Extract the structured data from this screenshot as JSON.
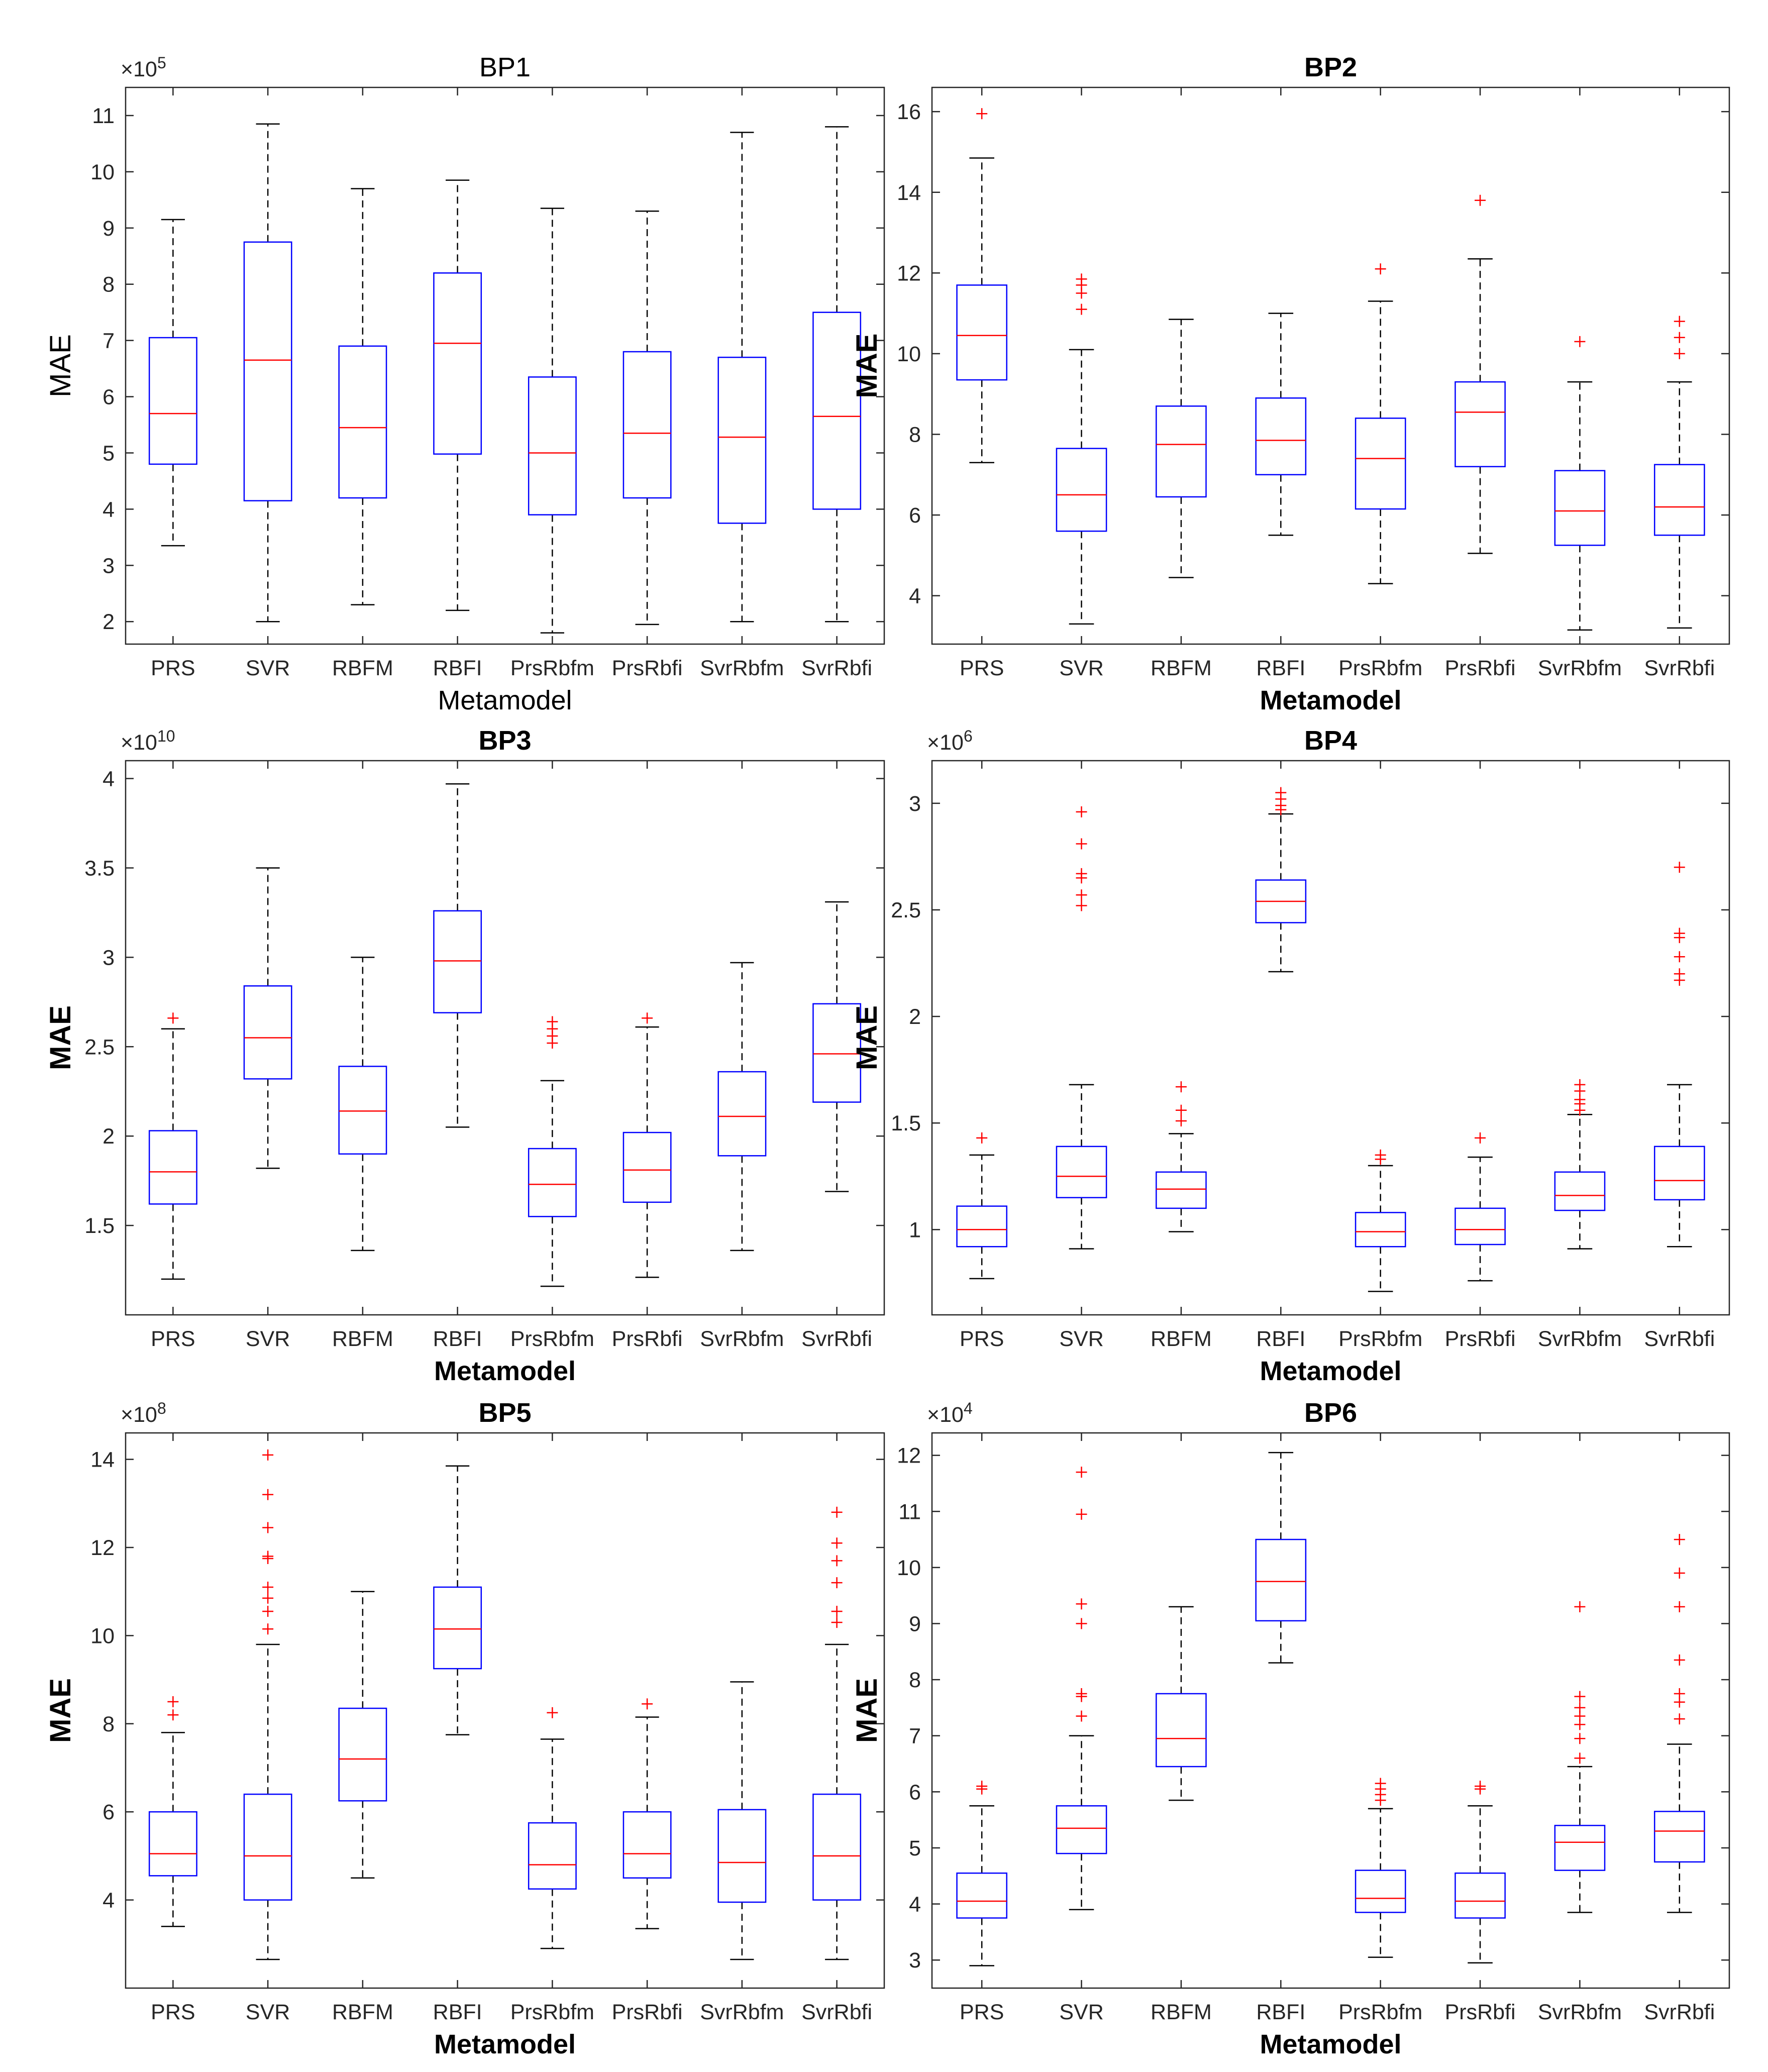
{
  "colors": {
    "box": "#0000ff",
    "median": "#ff0000",
    "outlier": "#ff0000",
    "whisker": "#000000",
    "axis": "#262626"
  },
  "chart_data": [
    {
      "type": "boxplot",
      "title": "BP1",
      "title_bold": false,
      "label_bold": false,
      "xlabel": "Metamodel",
      "ylabel": "MAE",
      "exponent": "5",
      "ylim": [
        1.6,
        11.5
      ],
      "yticks": [
        2,
        3,
        4,
        5,
        6,
        7,
        8,
        9,
        10,
        11
      ],
      "categories": [
        "PRS",
        "SVR",
        "RBFM",
        "RBFI",
        "PrsRbfm",
        "PrsRbfi",
        "SvrRbfm",
        "SvrRbfi"
      ],
      "boxes": [
        {
          "lw": 3.35,
          "q1": 4.8,
          "med": 5.7,
          "q3": 7.05,
          "uw": 9.15,
          "outliers": []
        },
        {
          "lw": 2.0,
          "q1": 4.15,
          "med": 6.65,
          "q3": 8.75,
          "uw": 10.85,
          "outliers": []
        },
        {
          "lw": 2.3,
          "q1": 4.2,
          "med": 5.45,
          "q3": 6.9,
          "uw": 9.7,
          "outliers": []
        },
        {
          "lw": 2.2,
          "q1": 4.98,
          "med": 6.95,
          "q3": 8.2,
          "uw": 9.85,
          "outliers": []
        },
        {
          "lw": 1.8,
          "q1": 3.9,
          "med": 5.0,
          "q3": 6.35,
          "uw": 9.35,
          "outliers": []
        },
        {
          "lw": 1.95,
          "q1": 4.2,
          "med": 5.35,
          "q3": 6.8,
          "uw": 9.3,
          "outliers": []
        },
        {
          "lw": 2.0,
          "q1": 3.75,
          "med": 5.28,
          "q3": 6.7,
          "uw": 10.7,
          "outliers": []
        },
        {
          "lw": 2.0,
          "q1": 4.0,
          "med": 5.65,
          "q3": 7.5,
          "uw": 10.8,
          "outliers": []
        }
      ]
    },
    {
      "type": "boxplot",
      "title": "BP2",
      "title_bold": true,
      "label_bold": true,
      "xlabel": "Metamodel",
      "ylabel": "MAE",
      "exponent": "",
      "ylim": [
        2.8,
        16.6
      ],
      "yticks": [
        4,
        6,
        8,
        10,
        12,
        14,
        16
      ],
      "categories": [
        "PRS",
        "SVR",
        "RBFM",
        "RBFI",
        "PrsRbfm",
        "PrsRbfi",
        "SvrRbfm",
        "SvrRbfi"
      ],
      "boxes": [
        {
          "lw": 7.3,
          "q1": 9.35,
          "med": 10.45,
          "q3": 11.7,
          "uw": 14.85,
          "outliers": [
            15.95
          ]
        },
        {
          "lw": 3.3,
          "q1": 5.6,
          "med": 6.5,
          "q3": 7.65,
          "uw": 10.1,
          "outliers": [
            11.1,
            11.5,
            11.7,
            11.85
          ]
        },
        {
          "lw": 4.45,
          "q1": 6.45,
          "med": 7.75,
          "q3": 8.7,
          "uw": 10.85,
          "outliers": []
        },
        {
          "lw": 5.5,
          "q1": 7.0,
          "med": 7.85,
          "q3": 8.9,
          "uw": 11.0,
          "outliers": []
        },
        {
          "lw": 4.3,
          "q1": 6.15,
          "med": 7.4,
          "q3": 8.4,
          "uw": 11.3,
          "outliers": [
            12.1
          ]
        },
        {
          "lw": 5.05,
          "q1": 7.2,
          "med": 8.55,
          "q3": 9.3,
          "uw": 12.35,
          "outliers": [
            13.8
          ]
        },
        {
          "lw": 3.15,
          "q1": 5.25,
          "med": 6.1,
          "q3": 7.1,
          "uw": 9.3,
          "outliers": [
            10.3
          ]
        },
        {
          "lw": 3.2,
          "q1": 5.5,
          "med": 6.2,
          "q3": 7.25,
          "uw": 9.3,
          "outliers": [
            10.0,
            10.4,
            10.8
          ]
        }
      ]
    },
    {
      "type": "boxplot",
      "title": "BP3",
      "title_bold": true,
      "label_bold": true,
      "xlabel": "Metamodel",
      "ylabel": "MAE",
      "exponent": "10",
      "ylim": [
        1.0,
        4.1
      ],
      "yticks": [
        1.5,
        2,
        2.5,
        3,
        3.5,
        4
      ],
      "categories": [
        "PRS",
        "SVR",
        "RBFM",
        "RBFI",
        "PrsRbfm",
        "PrsRbfi",
        "SvrRbfm",
        "SvrRbfi"
      ],
      "boxes": [
        {
          "lw": 1.2,
          "q1": 1.62,
          "med": 1.8,
          "q3": 2.03,
          "uw": 2.6,
          "outliers": [
            2.66
          ]
        },
        {
          "lw": 1.82,
          "q1": 2.32,
          "med": 2.55,
          "q3": 2.84,
          "uw": 3.5,
          "outliers": []
        },
        {
          "lw": 1.36,
          "q1": 1.9,
          "med": 2.14,
          "q3": 2.39,
          "uw": 3.0,
          "outliers": []
        },
        {
          "lw": 2.05,
          "q1": 2.69,
          "med": 2.98,
          "q3": 3.26,
          "uw": 3.97,
          "outliers": []
        },
        {
          "lw": 1.16,
          "q1": 1.55,
          "med": 1.73,
          "q3": 1.93,
          "uw": 2.31,
          "outliers": [
            2.52,
            2.56,
            2.6,
            2.64
          ]
        },
        {
          "lw": 1.21,
          "q1": 1.63,
          "med": 1.81,
          "q3": 2.02,
          "uw": 2.61,
          "outliers": [
            2.66
          ]
        },
        {
          "lw": 1.36,
          "q1": 1.89,
          "med": 2.11,
          "q3": 2.36,
          "uw": 2.97,
          "outliers": []
        },
        {
          "lw": 1.69,
          "q1": 2.19,
          "med": 2.46,
          "q3": 2.74,
          "uw": 3.31,
          "outliers": []
        }
      ]
    },
    {
      "type": "boxplot",
      "title": "BP4",
      "title_bold": true,
      "label_bold": true,
      "xlabel": "Metamodel",
      "ylabel": "MAE",
      "exponent": "6",
      "ylim": [
        0.6,
        3.2
      ],
      "yticks": [
        1,
        1.5,
        2,
        2.5,
        3
      ],
      "categories": [
        "PRS",
        "SVR",
        "RBFM",
        "RBFI",
        "PrsRbfm",
        "PrsRbfi",
        "SvrRbfm",
        "SvrRbfi"
      ],
      "boxes": [
        {
          "lw": 0.77,
          "q1": 0.92,
          "med": 1.0,
          "q3": 1.11,
          "uw": 1.35,
          "outliers": [
            1.43
          ]
        },
        {
          "lw": 0.91,
          "q1": 1.15,
          "med": 1.25,
          "q3": 1.39,
          "uw": 1.68,
          "outliers": [
            2.52,
            2.57,
            2.65,
            2.67,
            2.81,
            2.96
          ]
        },
        {
          "lw": 0.99,
          "q1": 1.1,
          "med": 1.19,
          "q3": 1.27,
          "uw": 1.45,
          "outliers": [
            1.51,
            1.56,
            1.67
          ]
        },
        {
          "lw": 2.21,
          "q1": 2.44,
          "med": 2.54,
          "q3": 2.64,
          "uw": 2.95,
          "outliers": [
            2.97,
            2.99,
            3.02,
            3.05
          ]
        },
        {
          "lw": 0.71,
          "q1": 0.92,
          "med": 0.99,
          "q3": 1.08,
          "uw": 1.3,
          "outliers": [
            1.33,
            1.35
          ]
        },
        {
          "lw": 0.76,
          "q1": 0.93,
          "med": 1.0,
          "q3": 1.1,
          "uw": 1.34,
          "outliers": [
            1.43
          ]
        },
        {
          "lw": 0.91,
          "q1": 1.09,
          "med": 1.16,
          "q3": 1.27,
          "uw": 1.54,
          "outliers": [
            1.56,
            1.59,
            1.61,
            1.65,
            1.68
          ]
        },
        {
          "lw": 0.92,
          "q1": 1.14,
          "med": 1.23,
          "q3": 1.39,
          "uw": 1.68,
          "outliers": [
            2.17,
            2.2,
            2.28,
            2.37,
            2.39,
            2.7
          ]
        }
      ]
    },
    {
      "type": "boxplot",
      "title": "BP5",
      "title_bold": true,
      "label_bold": true,
      "xlabel": "Metamodel",
      "ylabel": "MAE",
      "exponent": "8",
      "ylim": [
        2.0,
        14.6
      ],
      "yticks": [
        4,
        6,
        8,
        10,
        12,
        14
      ],
      "categories": [
        "PRS",
        "SVR",
        "RBFM",
        "RBFI",
        "PrsRbfm",
        "PrsRbfi",
        "SvrRbfm",
        "SvrRbfi"
      ],
      "boxes": [
        {
          "lw": 3.4,
          "q1": 4.55,
          "med": 5.05,
          "q3": 6.0,
          "uw": 7.8,
          "outliers": [
            8.2,
            8.5
          ]
        },
        {
          "lw": 2.65,
          "q1": 4.0,
          "med": 5.0,
          "q3": 6.4,
          "uw": 9.8,
          "outliers": [
            10.15,
            10.55,
            10.85,
            11.1,
            11.75,
            11.8,
            12.45,
            13.2,
            14.1
          ]
        },
        {
          "lw": 4.5,
          "q1": 6.25,
          "med": 7.2,
          "q3": 8.35,
          "uw": 11.0,
          "outliers": []
        },
        {
          "lw": 7.75,
          "q1": 9.25,
          "med": 10.15,
          "q3": 11.1,
          "uw": 13.85,
          "outliers": []
        },
        {
          "lw": 2.9,
          "q1": 4.25,
          "med": 4.8,
          "q3": 5.75,
          "uw": 7.65,
          "outliers": [
            8.25
          ]
        },
        {
          "lw": 3.35,
          "q1": 4.5,
          "med": 5.05,
          "q3": 6.0,
          "uw": 8.15,
          "outliers": [
            8.45
          ]
        },
        {
          "lw": 2.65,
          "q1": 3.95,
          "med": 4.85,
          "q3": 6.05,
          "uw": 8.95,
          "outliers": []
        },
        {
          "lw": 2.65,
          "q1": 4.0,
          "med": 5.0,
          "q3": 6.4,
          "uw": 9.8,
          "outliers": [
            10.3,
            10.55,
            11.2,
            11.7,
            12.1,
            12.8
          ]
        }
      ]
    },
    {
      "type": "boxplot",
      "title": "BP6",
      "title_bold": true,
      "label_bold": true,
      "xlabel": "Metamodel",
      "ylabel": "MAE",
      "exponent": "4",
      "ylim": [
        2.5,
        12.4
      ],
      "yticks": [
        3,
        4,
        5,
        6,
        7,
        8,
        9,
        10,
        11,
        12
      ],
      "categories": [
        "PRS",
        "SVR",
        "RBFM",
        "RBFI",
        "PrsRbfm",
        "PrsRbfi",
        "SvrRbfm",
        "SvrRbfi"
      ],
      "boxes": [
        {
          "lw": 2.9,
          "q1": 3.75,
          "med": 4.05,
          "q3": 4.55,
          "uw": 5.75,
          "outliers": [
            6.05,
            6.1
          ]
        },
        {
          "lw": 3.9,
          "q1": 4.9,
          "med": 5.35,
          "q3": 5.75,
          "uw": 7.0,
          "outliers": [
            7.35,
            7.7,
            7.75,
            9.0,
            9.35,
            10.95,
            11.7
          ]
        },
        {
          "lw": 5.85,
          "q1": 6.45,
          "med": 6.95,
          "q3": 7.75,
          "uw": 9.3,
          "outliers": []
        },
        {
          "lw": 8.3,
          "q1": 9.05,
          "med": 9.75,
          "q3": 10.5,
          "uw": 12.05,
          "outliers": []
        },
        {
          "lw": 3.05,
          "q1": 3.85,
          "med": 4.1,
          "q3": 4.6,
          "uw": 5.7,
          "outliers": [
            5.85,
            5.95,
            6.05,
            6.15
          ]
        },
        {
          "lw": 2.95,
          "q1": 3.75,
          "med": 4.05,
          "q3": 4.55,
          "uw": 5.75,
          "outliers": [
            6.05,
            6.1
          ]
        },
        {
          "lw": 3.85,
          "q1": 4.6,
          "med": 5.1,
          "q3": 5.4,
          "uw": 6.45,
          "outliers": [
            6.6,
            6.95,
            7.2,
            7.35,
            7.5,
            7.7,
            9.3
          ]
        },
        {
          "lw": 3.85,
          "q1": 4.75,
          "med": 5.3,
          "q3": 5.65,
          "uw": 6.85,
          "outliers": [
            7.3,
            7.6,
            7.75,
            8.35,
            9.3,
            9.9,
            10.5
          ]
        }
      ]
    }
  ]
}
